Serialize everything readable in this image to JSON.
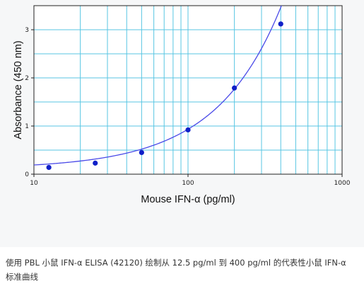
{
  "chart_data": {
    "type": "scatter",
    "title": "",
    "xlabel": "Mouse IFN-α (pg/ml)",
    "ylabel": "Absorbance (450 nm)",
    "x_scale": "log",
    "xlim": [
      10,
      1000
    ],
    "ylim": [
      0,
      3.5
    ],
    "x_ticks": [
      "10",
      "100",
      "1000"
    ],
    "y_ticks": [
      "0",
      "1",
      "2",
      "3"
    ],
    "grid": true,
    "legend": "none",
    "points": {
      "x": [
        12.5,
        25,
        50,
        100,
        200,
        400
      ],
      "y": [
        0.14,
        0.23,
        0.45,
        0.92,
        1.79,
        3.12
      ]
    },
    "fit_curve": {
      "type": "quadratic",
      "coefficients": {
        "a": 0.1092,
        "b": 0.00819,
        "c": 5e-07
      }
    },
    "colors": {
      "grid": "#58c6e3",
      "curve": "#4a4ae8",
      "points": "#1020c8",
      "axis": "#222222"
    }
  },
  "caption": "使用 PBL 小鼠 IFN-α ELISA (42120) 绘制从 12.5 pg/ml 到 400 pg/ml 的代表性小鼠 IFN-α 标准曲线"
}
